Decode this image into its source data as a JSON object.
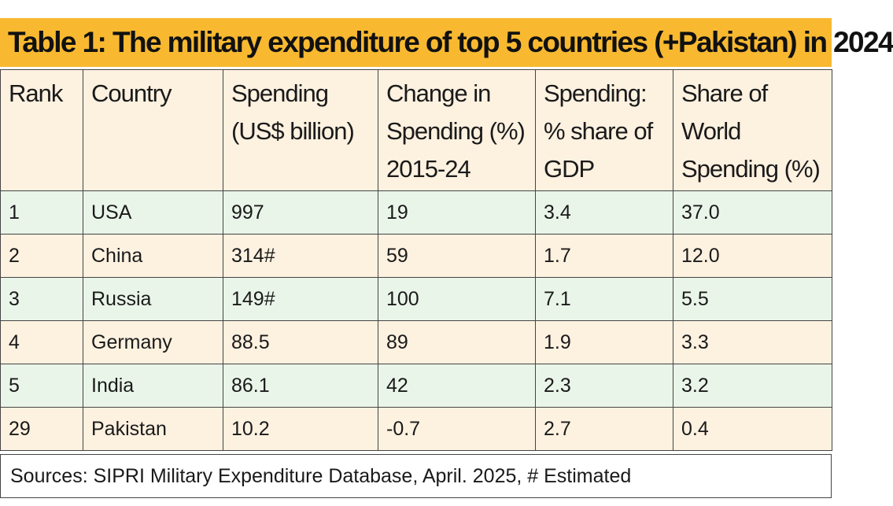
{
  "title": "Table 1: The military expenditure of top 5 countries (+Pakistan) in 2024",
  "headers": [
    {
      "lines": [
        "Rank"
      ]
    },
    {
      "lines": [
        "Country"
      ]
    },
    {
      "lines": [
        "Spending",
        "(US$ billion)"
      ]
    },
    {
      "lines": [
        "Change in",
        "Spending (%)",
        "2015-24"
      ]
    },
    {
      "lines": [
        "Spending:",
        "% share of",
        "GDP"
      ]
    },
    {
      "lines": [
        "Share of",
        "World",
        "Spending (%)"
      ]
    }
  ],
  "rows": [
    [
      "1",
      "USA",
      "997",
      "19",
      "3.4",
      "37.0"
    ],
    [
      "2",
      "China",
      "314#",
      "59",
      "1.7",
      "12.0"
    ],
    [
      "3",
      "Russia",
      "149#",
      "100",
      "7.1",
      "5.5"
    ],
    [
      "4",
      "Germany",
      "88.5",
      "89",
      "1.9",
      "3.3"
    ],
    [
      "5",
      "India",
      "86.1",
      "42",
      "2.3",
      "3.2"
    ],
    [
      "29",
      "Pakistan",
      "10.2",
      "-0.7",
      "2.7",
      "0.4"
    ]
  ],
  "source": "Sources: SIPRI Military Expenditure Database, April. 2025, # Estimated",
  "colors": {
    "title_bg": "#f8b931",
    "header_bg": "#fdf1e0",
    "row_green": "#eaf5e9",
    "row_cream": "#fdf1e0",
    "border": "#444444"
  }
}
